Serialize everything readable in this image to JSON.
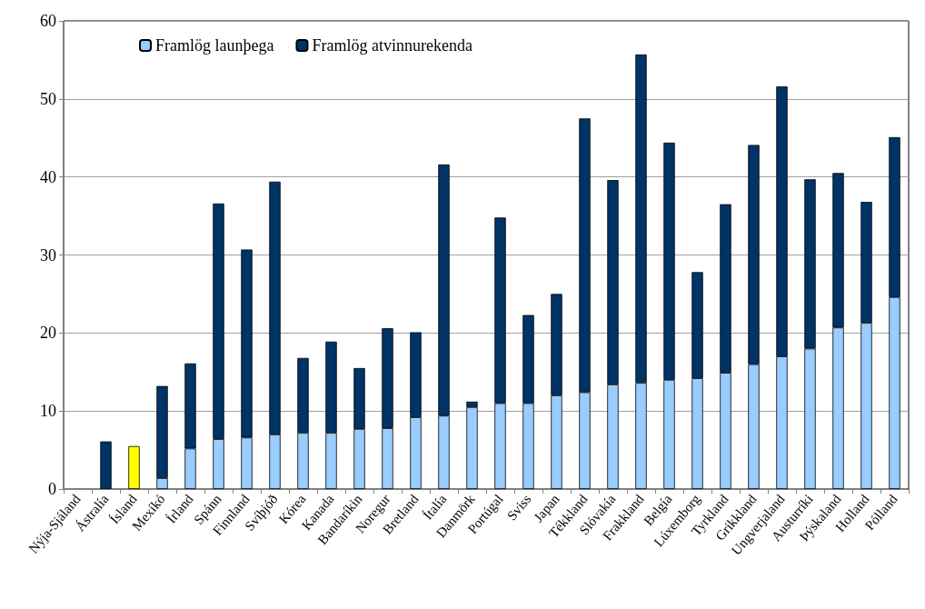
{
  "chart_data": {
    "type": "bar",
    "stacked": true,
    "categories": [
      "Nýja-Sjáland",
      "Ástralía",
      "Ísland",
      "Mexíkó",
      "Írland",
      "Spánn",
      "Finnland",
      "Svíþjóð",
      "Kórea",
      "Kanada",
      "Bandaríkin",
      "Noregur",
      "Bretland",
      "Ítalía",
      "Danmörk",
      "Portúgal",
      "Sviss",
      "Japan",
      "Tékkland",
      "Slóvakía",
      "Frakkland",
      "Belgía",
      "Lúxemborg",
      "Tyrkland",
      "Grikkland",
      "Ungverjaland",
      "Austurríki",
      "Þýskaland",
      "Holland",
      "Pólland"
    ],
    "series": [
      {
        "name": "Framlög launþega",
        "color": "#99ccff",
        "colors": [
          "#99ccff",
          "#99ccff",
          "#ffff00",
          "#99ccff",
          "#99ccff",
          "#99ccff",
          "#99ccff",
          "#99ccff",
          "#99ccff",
          "#99ccff",
          "#99ccff",
          "#99ccff",
          "#99ccff",
          "#99ccff",
          "#99ccff",
          "#99ccff",
          "#99ccff",
          "#99ccff",
          "#99ccff",
          "#99ccff",
          "#99ccff",
          "#99ccff",
          "#99ccff",
          "#99ccff",
          "#99ccff",
          "#99ccff",
          "#99ccff",
          "#99ccff",
          "#99ccff",
          "#99ccff"
        ],
        "values": [
          null,
          null,
          5.5,
          1.4,
          5.2,
          6.4,
          6.6,
          7.0,
          7.2,
          7.2,
          7.7,
          7.8,
          9.2,
          9.4,
          10.5,
          11.0,
          11.0,
          12.0,
          12.4,
          13.4,
          13.6,
          14.0,
          14.2,
          14.9,
          16.0,
          17.0,
          18.0,
          20.7,
          21.3,
          24.6
        ]
      },
      {
        "name": "Framlög atvinnurekenda",
        "color": "#003366",
        "values": [
          null,
          6.1,
          null,
          11.8,
          10.9,
          30.2,
          24.1,
          32.4,
          9.6,
          11.7,
          7.8,
          12.8,
          10.9,
          32.2,
          0.7,
          23.8,
          11.3,
          13.0,
          35.1,
          26.2,
          42.1,
          30.4,
          13.6,
          21.6,
          28.1,
          34.6,
          21.7,
          19.8,
          15.5,
          20.5
        ]
      }
    ],
    "ylim": [
      0,
      60
    ],
    "yticks": [
      0,
      10,
      20,
      30,
      40,
      50,
      60
    ],
    "grid": "y",
    "legend": "top left"
  }
}
